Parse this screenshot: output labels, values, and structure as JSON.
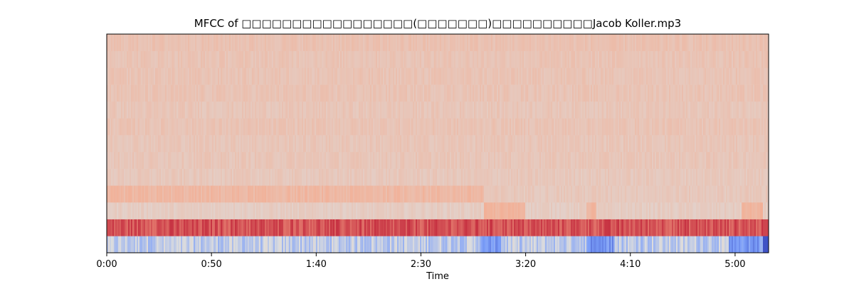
{
  "chart_data": {
    "type": "heatmap",
    "title": "MFCC of □□□□□□□□□□□□□□□□□(□□□□□□□)□□□□□□□□□□Jacob Koller.mp3",
    "xlabel": "Time",
    "ylabel": "",
    "x_ticks": [
      "0:00",
      "0:50",
      "1:40",
      "2:30",
      "3:20",
      "4:10",
      "5:00"
    ],
    "x_tick_seconds": [
      0,
      50,
      100,
      150,
      200,
      250,
      300
    ],
    "xlim_seconds": [
      0,
      316
    ],
    "n_coefficients": 13,
    "grid": false,
    "colormap": "coolwarm",
    "colors": {
      "low": "#3b4cc0",
      "mid": "#dddddd",
      "high": "#b40426",
      "background": "#ffffff",
      "axis": "#000000"
    },
    "coefficient_bands": [
      {
        "coefficient": 0,
        "description": "blue",
        "approx_level": -0.15
      },
      {
        "coefficient": 1,
        "description": "dark red",
        "approx_level": 0.85
      },
      {
        "coefficient": 2,
        "description": "light salmon",
        "approx_level": 0.58
      },
      {
        "coefficient": 3,
        "description": "salmon",
        "approx_level": 0.66
      },
      {
        "coefficient": 4,
        "description": "light salmon",
        "approx_level": 0.6
      },
      {
        "coefficient": 5,
        "description": "light salmon",
        "approx_level": 0.61
      },
      {
        "coefficient": 6,
        "description": "light salmon",
        "approx_level": 0.61
      },
      {
        "coefficient": 7,
        "description": "light salmon",
        "approx_level": 0.62
      },
      {
        "coefficient": 8,
        "description": "light salmon",
        "approx_level": 0.61
      },
      {
        "coefficient": 9,
        "description": "light salmon",
        "approx_level": 0.62
      },
      {
        "coefficient": 10,
        "description": "light salmon",
        "approx_level": 0.62
      },
      {
        "coefficient": 11,
        "description": "light salmon",
        "approx_level": 0.62
      },
      {
        "coefficient": 12,
        "description": "light salmon",
        "approx_level": 0.63
      }
    ]
  }
}
